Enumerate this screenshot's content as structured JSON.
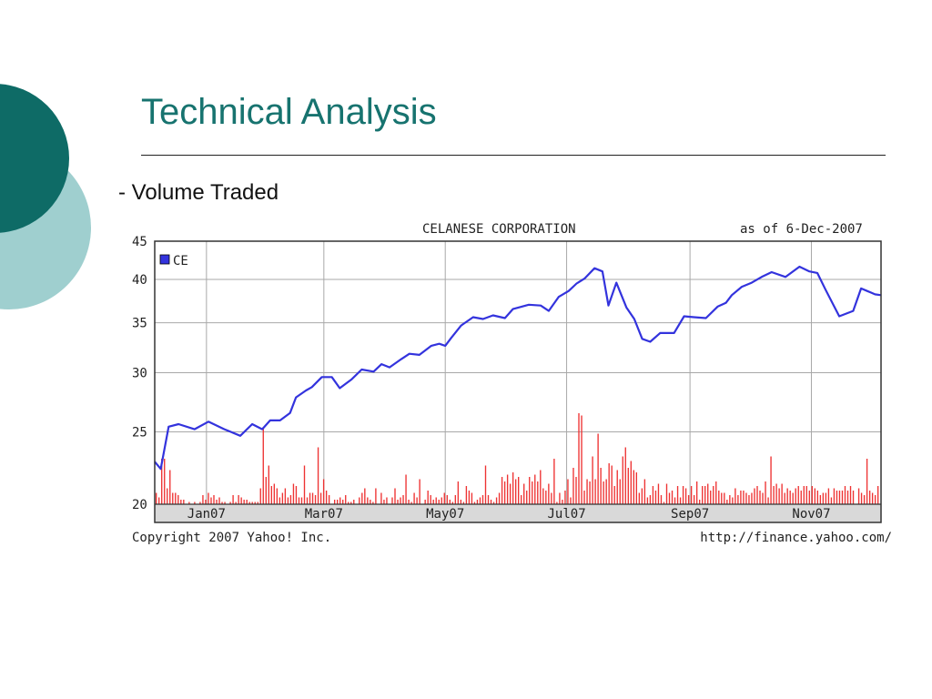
{
  "slide": {
    "title": "Technical Analysis",
    "bullet": "- Volume Traded",
    "colors": {
      "title": "#17736f",
      "circle_dark": "#0e6b66",
      "circle_light": "#9fcfcf"
    }
  },
  "chart_data": {
    "type": "line",
    "title": "CELANESE CORPORATION",
    "as_of": "as of  6-Dec-2007",
    "copyright": "Copyright 2007 Yahoo! Inc.",
    "source_url": "http://finance.yahoo.com/",
    "legend": "CE",
    "legend_position": "top-left",
    "grid": true,
    "y_scale": "log",
    "ylim": [
      20,
      45
    ],
    "yticks": [
      45,
      40,
      35,
      30,
      25,
      20
    ],
    "xlim": [
      "2006-12-06",
      "2007-12-06"
    ],
    "xticks": [
      {
        "date": "2007-01-01",
        "label": "Jan07"
      },
      {
        "date": "2007-03-01",
        "label": "Mar07"
      },
      {
        "date": "2007-05-01",
        "label": "May07"
      },
      {
        "date": "2007-07-01",
        "label": "Jul07"
      },
      {
        "date": "2007-09-01",
        "label": "Sep07"
      },
      {
        "date": "2007-11-01",
        "label": "Nov07"
      }
    ],
    "series": [
      {
        "name": "CE",
        "color": "#3333dd",
        "x": [
          "2006-12-06",
          "2006-12-09",
          "2006-12-13",
          "2006-12-18",
          "2006-12-26",
          "2007-01-02",
          "2007-01-10",
          "2007-01-18",
          "2007-01-24",
          "2007-01-29",
          "2007-02-02",
          "2007-02-07",
          "2007-02-12",
          "2007-02-15",
          "2007-02-20",
          "2007-02-23",
          "2007-02-28",
          "2007-03-05",
          "2007-03-09",
          "2007-03-15",
          "2007-03-20",
          "2007-03-26",
          "2007-03-30",
          "2007-04-03",
          "2007-04-09",
          "2007-04-13",
          "2007-04-18",
          "2007-04-24",
          "2007-04-28",
          "2007-05-01",
          "2007-05-04",
          "2007-05-09",
          "2007-05-15",
          "2007-05-20",
          "2007-05-25",
          "2007-05-31",
          "2007-06-04",
          "2007-06-12",
          "2007-06-18",
          "2007-06-22",
          "2007-06-27",
          "2007-07-02",
          "2007-07-06",
          "2007-07-10",
          "2007-07-15",
          "2007-07-19",
          "2007-07-22",
          "2007-07-26",
          "2007-07-31",
          "2007-08-04",
          "2007-08-08",
          "2007-08-12",
          "2007-08-17",
          "2007-08-24",
          "2007-08-29",
          "2007-09-03",
          "2007-09-09",
          "2007-09-15",
          "2007-09-19",
          "2007-09-22",
          "2007-09-27",
          "2007-10-02",
          "2007-10-07",
          "2007-10-12",
          "2007-10-19",
          "2007-10-26",
          "2007-10-31",
          "2007-11-04",
          "2007-11-08",
          "2007-11-15",
          "2007-11-22",
          "2007-11-26",
          "2007-11-29",
          "2007-12-01",
          "2007-12-03",
          "2007-12-06"
        ],
        "y": [
          22.8,
          22.3,
          25.4,
          25.6,
          25.2,
          25.8,
          25.2,
          24.7,
          25.6,
          25.2,
          25.9,
          25.9,
          26.5,
          27.8,
          28.4,
          28.7,
          29.6,
          29.6,
          28.6,
          29.4,
          30.3,
          30.1,
          30.8,
          30.5,
          31.3,
          31.8,
          31.7,
          32.6,
          32.8,
          32.6,
          33.4,
          34.7,
          35.6,
          35.4,
          35.8,
          35.5,
          36.5,
          37.0,
          36.9,
          36.3,
          37.9,
          38.6,
          39.5,
          40.1,
          41.4,
          41.0,
          36.9,
          39.6,
          36.7,
          35.4,
          33.3,
          33.0,
          33.9,
          33.9,
          35.7,
          35.6,
          35.5,
          36.8,
          37.2,
          38.1,
          39.1,
          39.6,
          40.3,
          40.9,
          40.3,
          41.6,
          41.0,
          40.8,
          38.8,
          35.7,
          36.3,
          38.9,
          38.6,
          38.4,
          38.2,
          38.1
        ]
      }
    ],
    "volume": {
      "color": "#ee3333",
      "unit": "relative",
      "values": [
        5,
        3,
        20,
        20,
        7,
        15,
        5,
        5,
        4,
        2,
        2,
        0,
        1,
        0,
        1,
        0,
        1,
        4,
        2,
        5,
        3,
        4,
        2,
        3,
        1,
        1,
        0,
        1,
        4,
        1,
        4,
        3,
        2,
        2,
        1,
        1,
        1,
        1,
        7,
        34,
        12,
        17,
        8,
        9,
        7,
        3,
        5,
        7,
        3,
        4,
        9,
        8,
        3,
        3,
        17,
        3,
        5,
        5,
        4,
        25,
        5,
        11,
        6,
        4,
        0,
        2,
        2,
        3,
        2,
        4,
        1,
        1,
        2,
        0,
        3,
        5,
        7,
        3,
        2,
        1,
        7,
        0,
        5,
        2,
        3,
        0,
        3,
        7,
        2,
        3,
        4,
        13,
        2,
        1,
        5,
        3,
        11,
        0,
        2,
        6,
        4,
        2,
        3,
        2,
        3,
        5,
        4,
        2,
        1,
        4,
        10,
        2,
        1,
        8,
        6,
        5,
        1,
        2,
        3,
        4,
        17,
        4,
        2,
        1,
        3,
        5,
        12,
        10,
        13,
        9,
        14,
        11,
        12,
        4,
        9,
        6,
        12,
        10,
        13,
        10,
        15,
        7,
        6,
        9,
        5,
        20,
        1,
        5,
        2,
        6,
        11,
        3,
        16,
        12,
        40,
        39,
        6,
        11,
        10,
        21,
        11,
        31,
        16,
        10,
        11,
        18,
        17,
        8,
        15,
        11,
        21,
        25,
        16,
        19,
        15,
        14,
        5,
        7,
        11,
        3,
        4,
        8,
        6,
        9,
        4,
        1,
        9,
        5,
        6,
        3,
        8,
        3,
        8,
        7,
        4,
        8,
        4,
        10,
        2,
        8,
        8,
        9,
        6,
        8,
        10,
        6,
        5,
        5,
        2,
        4,
        3,
        7,
        4,
        6,
        6,
        5,
        4,
        5,
        7,
        8,
        6,
        5,
        10,
        3,
        21,
        8,
        9,
        7,
        9,
        5,
        7,
        6,
        5,
        7,
        8,
        6,
        8,
        8,
        6,
        8,
        7,
        6,
        4,
        5,
        5,
        7,
        3,
        7,
        6,
        6,
        6,
        8,
        6,
        8,
        6,
        0,
        7,
        5,
        4,
        20,
        6,
        5,
        4,
        8
      ]
    }
  }
}
